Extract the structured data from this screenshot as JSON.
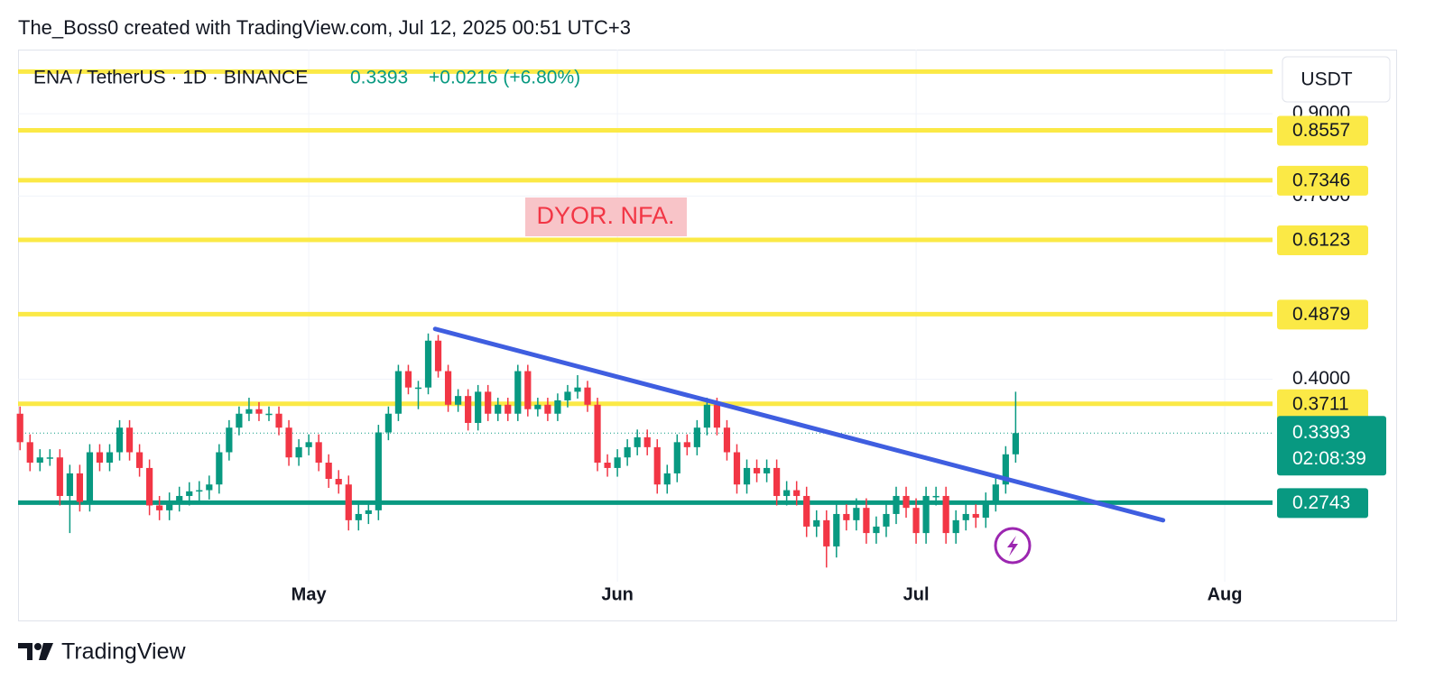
{
  "header": {
    "title": "The_Boss0 created with TradingView.com, Jul 12, 2025 00:51 UTC+3"
  },
  "chart_data": {
    "type": "candlestick",
    "symbol": "ENA / TetherUS · 1D · BINANCE",
    "change_label": "+0.0216 (+6.80%)",
    "currency": "USDT",
    "annotation": "DYOR. NFA.",
    "countdown": "02:08:39",
    "open": [
      0.36,
      0.33,
      0.31,
      0.315,
      0.315,
      0.28,
      0.3,
      0.275,
      0.32,
      0.31,
      0.32,
      0.345,
      0.32,
      0.305,
      0.272,
      0.268,
      0.275,
      0.28,
      0.284,
      0.285,
      0.29,
      0.32,
      0.345,
      0.36,
      0.365,
      0.36,
      0.36,
      0.345,
      0.315,
      0.325,
      0.33,
      0.31,
      0.295,
      0.29,
      0.26,
      0.265,
      0.268,
      0.34,
      0.36,
      0.41,
      0.39,
      0.39,
      0.45,
      0.41,
      0.37,
      0.38,
      0.35,
      0.385,
      0.36,
      0.37,
      0.36,
      0.41,
      0.365,
      0.37,
      0.36,
      0.375,
      0.385,
      0.39,
      0.37,
      0.31,
      0.305,
      0.315,
      0.325,
      0.335,
      0.325,
      0.29,
      0.3,
      0.33,
      0.325,
      0.345,
      0.37,
      0.345,
      0.32,
      0.29,
      0.305,
      0.3,
      0.305,
      0.28,
      0.285,
      0.28,
      0.255,
      0.26,
      0.24,
      0.265,
      0.26,
      0.27,
      0.25,
      0.255,
      0.265,
      0.28,
      0.27,
      0.25,
      0.28,
      0.28,
      0.25,
      0.26,
      0.265,
      0.262,
      0.275,
      0.29,
      0.318
    ],
    "high": [
      0.368,
      0.338,
      0.323,
      0.323,
      0.323,
      0.308,
      0.308,
      0.328,
      0.328,
      0.328,
      0.353,
      0.353,
      0.328,
      0.313,
      0.28,
      0.283,
      0.288,
      0.292,
      0.293,
      0.298,
      0.328,
      0.353,
      0.368,
      0.378,
      0.373,
      0.368,
      0.368,
      0.353,
      0.333,
      0.338,
      0.338,
      0.318,
      0.303,
      0.298,
      0.273,
      0.276,
      0.348,
      0.368,
      0.418,
      0.418,
      0.398,
      0.46,
      0.458,
      0.418,
      0.388,
      0.388,
      0.393,
      0.393,
      0.378,
      0.378,
      0.418,
      0.418,
      0.378,
      0.378,
      0.383,
      0.393,
      0.405,
      0.398,
      0.378,
      0.318,
      0.323,
      0.333,
      0.343,
      0.343,
      0.333,
      0.308,
      0.338,
      0.338,
      0.353,
      0.378,
      0.378,
      0.353,
      0.328,
      0.313,
      0.313,
      0.313,
      0.313,
      0.293,
      0.293,
      0.288,
      0.268,
      0.268,
      0.273,
      0.273,
      0.278,
      0.278,
      0.263,
      0.273,
      0.288,
      0.288,
      0.278,
      0.288,
      0.288,
      0.288,
      0.268,
      0.273,
      0.273,
      0.283,
      0.298,
      0.326,
      0.385
    ],
    "low": [
      0.322,
      0.302,
      0.302,
      0.307,
      0.272,
      0.25,
      0.267,
      0.267,
      0.302,
      0.302,
      0.312,
      0.312,
      0.297,
      0.264,
      0.26,
      0.26,
      0.267,
      0.272,
      0.276,
      0.277,
      0.282,
      0.312,
      0.337,
      0.352,
      0.352,
      0.352,
      0.337,
      0.307,
      0.307,
      0.317,
      0.302,
      0.287,
      0.282,
      0.252,
      0.252,
      0.257,
      0.26,
      0.332,
      0.352,
      0.382,
      0.365,
      0.382,
      0.402,
      0.362,
      0.362,
      0.342,
      0.342,
      0.352,
      0.352,
      0.352,
      0.352,
      0.357,
      0.357,
      0.352,
      0.352,
      0.367,
      0.377,
      0.362,
      0.302,
      0.297,
      0.297,
      0.307,
      0.317,
      0.317,
      0.282,
      0.282,
      0.292,
      0.317,
      0.317,
      0.337,
      0.337,
      0.312,
      0.282,
      0.282,
      0.292,
      0.292,
      0.272,
      0.272,
      0.272,
      0.247,
      0.247,
      0.225,
      0.232,
      0.252,
      0.252,
      0.242,
      0.242,
      0.247,
      0.257,
      0.262,
      0.242,
      0.242,
      0.272,
      0.242,
      0.242,
      0.252,
      0.254,
      0.254,
      0.267,
      0.282,
      0.31
    ],
    "close": [
      0.33,
      0.31,
      0.315,
      0.315,
      0.28,
      0.3,
      0.275,
      0.32,
      0.31,
      0.32,
      0.345,
      0.32,
      0.305,
      0.272,
      0.268,
      0.275,
      0.28,
      0.284,
      0.285,
      0.29,
      0.32,
      0.345,
      0.36,
      0.365,
      0.36,
      0.36,
      0.345,
      0.315,
      0.325,
      0.33,
      0.31,
      0.295,
      0.29,
      0.26,
      0.265,
      0.268,
      0.34,
      0.36,
      0.41,
      0.39,
      0.39,
      0.45,
      0.41,
      0.37,
      0.38,
      0.35,
      0.385,
      0.36,
      0.37,
      0.36,
      0.41,
      0.365,
      0.37,
      0.36,
      0.375,
      0.385,
      0.39,
      0.37,
      0.31,
      0.305,
      0.315,
      0.325,
      0.335,
      0.325,
      0.29,
      0.3,
      0.33,
      0.325,
      0.345,
      0.37,
      0.345,
      0.32,
      0.29,
      0.305,
      0.3,
      0.305,
      0.28,
      0.285,
      0.28,
      0.255,
      0.26,
      0.24,
      0.265,
      0.26,
      0.27,
      0.25,
      0.255,
      0.265,
      0.28,
      0.27,
      0.25,
      0.28,
      0.28,
      0.25,
      0.26,
      0.265,
      0.262,
      0.275,
      0.29,
      0.318,
      0.3393
    ],
    "up_color": "#089981",
    "down_color": "#f23645",
    "xlim": [
      -0.2,
      125.8
    ],
    "xticks": [
      {
        "value": 29,
        "label": "May"
      },
      {
        "value": 60,
        "label": "Jun"
      },
      {
        "value": 90,
        "label": "Jul"
      },
      {
        "value": 121,
        "label": "Aug"
      }
    ],
    "ylim": [
      0.2155,
      1.095
    ],
    "log_scale": true,
    "yticks": [
      {
        "value": 0.4,
        "label": "0.4000"
      },
      {
        "value": 0.7,
        "label": "0.7000"
      },
      {
        "value": 0.9,
        "label": "0.9000"
      }
    ],
    "grid": true,
    "level_color": "#fbe946",
    "levels": [
      {
        "value": 1.024
      },
      {
        "value": 0.8557,
        "label": "0.8557"
      },
      {
        "value": 0.7346,
        "label": "0.7346"
      },
      {
        "value": 0.6123,
        "label": "0.6123"
      },
      {
        "value": 0.4879,
        "label": "0.4879"
      },
      {
        "value": 0.3711,
        "label": "0.3711"
      }
    ],
    "support": {
      "value": 0.2743,
      "label": "0.2743",
      "color": "#089981"
    },
    "trendline": {
      "x": [
        41.7,
        114.8
      ],
      "y": [
        0.4664,
        0.26
      ],
      "color": "#3f5ee0"
    }
  },
  "footer": {
    "brand": "TradingView"
  }
}
